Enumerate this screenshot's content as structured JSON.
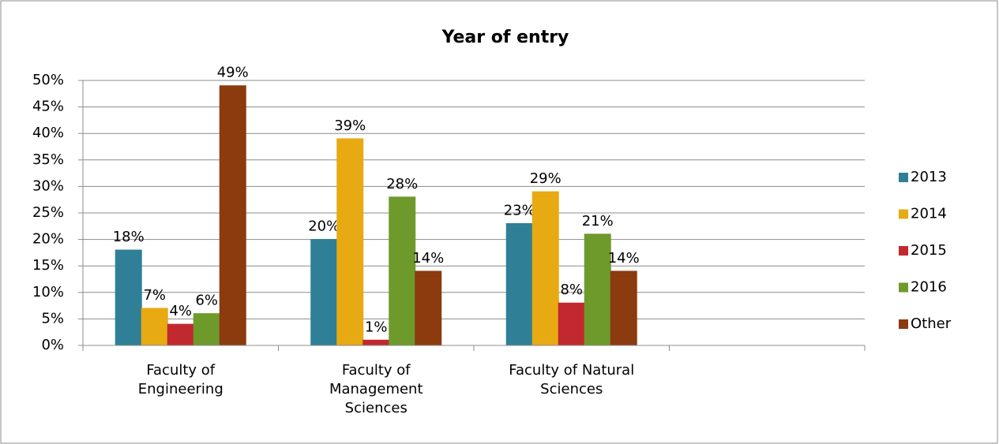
{
  "chart_data": {
    "type": "bar",
    "title": "Year of entry",
    "categories": [
      "Faculty of Engineering",
      "Faculty of Management Sciences",
      "Faculty of Natural Sciences",
      null
    ],
    "series": [
      {
        "name": "2013",
        "color": "#2f8096",
        "values": [
          18,
          20,
          23,
          null
        ],
        "value_labels": [
          "18%",
          "20%",
          "23%",
          null
        ]
      },
      {
        "name": "2014",
        "color": "#e8aa13",
        "values": [
          7,
          39,
          29,
          null
        ],
        "value_labels": [
          "7%",
          "39%",
          "29%",
          null
        ]
      },
      {
        "name": "2015",
        "color": "#c1292e",
        "values": [
          4,
          1,
          8,
          null
        ],
        "value_labels": [
          "4%",
          "1%",
          "8%",
          null
        ]
      },
      {
        "name": "2016",
        "color": "#6e9a2b",
        "values": [
          6,
          28,
          21,
          null
        ],
        "value_labels": [
          "6%",
          "28%",
          "21%",
          null
        ]
      },
      {
        "name": "Other",
        "color": "#8c3b0f",
        "values": [
          49,
          14,
          14,
          null
        ],
        "value_labels": [
          "49%",
          "14%",
          "14%",
          null
        ]
      }
    ],
    "ylim": [
      0,
      50
    ],
    "yticks": [
      {
        "value": 0,
        "label": "0%"
      },
      {
        "value": 5,
        "label": "5%"
      },
      {
        "value": 10,
        "label": "10%"
      },
      {
        "value": 15,
        "label": "15%"
      },
      {
        "value": 20,
        "label": "20%"
      },
      {
        "value": 25,
        "label": "25%"
      },
      {
        "value": 30,
        "label": "30%"
      },
      {
        "value": 35,
        "label": "35%"
      },
      {
        "value": 40,
        "label": "40%"
      },
      {
        "value": 45,
        "label": "45%"
      },
      {
        "value": 50,
        "label": "50%"
      }
    ],
    "grid": true,
    "legend": "right"
  }
}
